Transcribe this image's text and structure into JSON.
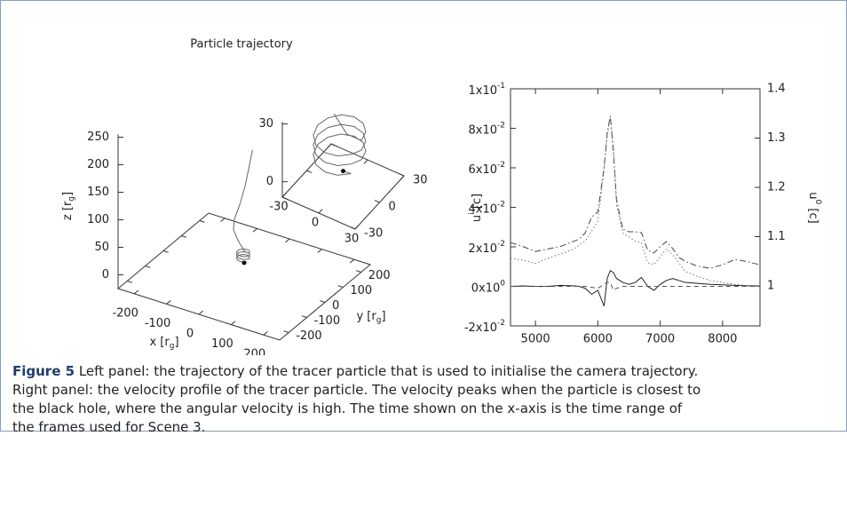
{
  "figure": {
    "label": "Figure 5",
    "caption": "Left panel: the trajectory of the tracer particle that is used to initialise the camera trajectory. Right panel: the velocity profile of the tracer particle. The velocity peaks when the particle is closest to the black hole, where the angular velocity is high. The time shown on the x-axis is the time range of the frames used for Scene 3."
  },
  "chart_data": [
    {
      "type": "trajectory3d",
      "title": "Particle trajectory",
      "color": "#666666",
      "xlabel": {
        "text": "x [r",
        "sub": "g",
        "tail": "]"
      },
      "ylabel": {
        "text": "y [r",
        "sub": "g",
        "tail": "]"
      },
      "zlabel": {
        "text": "z [r",
        "sub": "g",
        "tail": "]"
      },
      "xlim": [
        -250,
        250
      ],
      "ylim": [
        -250,
        250
      ],
      "zlim": [
        -25,
        255
      ],
      "xticks": [
        -200,
        -100,
        0,
        100,
        200
      ],
      "yticks": [
        -200,
        -100,
        0,
        100,
        200
      ],
      "zticks": [
        0,
        50,
        100,
        150,
        200,
        250
      ],
      "x": [
        20,
        12,
        2,
        -12,
        -28,
        -32,
        -20,
        -8,
        5,
        15,
        12.6,
        6,
        -3,
        -12,
        -18.6,
        -21,
        -18.6,
        -12,
        -3,
        6,
        12.6,
        15,
        12.6,
        6,
        -3,
        -12,
        -18.6,
        -21,
        -18.6,
        -12,
        -3,
        6,
        12.6,
        15,
        12.6,
        6,
        -3,
        -12,
        -18.6,
        -21,
        -18.6,
        -12,
        -3,
        6,
        12.6,
        0
      ],
      "y": [
        10,
        6,
        2,
        -2,
        -4,
        -2,
        0,
        0,
        -3,
        0,
        9,
        15.6,
        18,
        15.6,
        9,
        0,
        -9,
        -15.6,
        -18,
        -15.6,
        -9,
        0,
        9,
        15.6,
        18,
        15.6,
        9,
        0,
        -9,
        -15.6,
        -18,
        -15.6,
        -9,
        0,
        9,
        15.6,
        18,
        15.6,
        9,
        0,
        -9,
        -15.6,
        -18,
        -15.6,
        -9,
        0
      ],
      "z": [
        206,
        175,
        140,
        105,
        75,
        55,
        38,
        28,
        22,
        20,
        19.7,
        19.3,
        19,
        18.7,
        18.3,
        18,
        17.7,
        17.3,
        17,
        16.7,
        16.3,
        15,
        14.7,
        14.3,
        14,
        13.7,
        13.3,
        13,
        12.7,
        12.3,
        12,
        11.7,
        11.3,
        10,
        9.7,
        9.3,
        9,
        8.7,
        8.3,
        8,
        7.7,
        7.3,
        7,
        6.7,
        6.3,
        0
      ],
      "inset": {
        "xlim": [
          -30,
          30
        ],
        "ylim": [
          -30,
          30
        ],
        "zlim": [
          -8,
          31
        ],
        "xticks": [
          -30,
          0,
          30
        ],
        "yticks": [
          -30,
          0,
          30
        ],
        "zticks": [
          0,
          30
        ]
      }
    },
    {
      "type": "line",
      "xlabel": {
        "text": "t [r",
        "sub": "g",
        "tail": "/c]"
      },
      "ylabel": {
        "text": "u",
        "sup": "i",
        "tail": " [c]"
      },
      "y2label": {
        "text": "u",
        "sup": "0",
        "tail": " [c]"
      },
      "xlim": [
        4600,
        8600
      ],
      "ylim": [
        -0.02,
        0.1
      ],
      "y2lim": [
        0.919,
        1.4
      ],
      "xticks": [
        5000,
        6000,
        7000,
        8000
      ],
      "yticks": [
        {
          "value": -0.02,
          "label": "-2x10",
          "sup": "-2"
        },
        {
          "value": 0,
          "label": "0x10",
          "sup": "0"
        },
        {
          "value": 0.02,
          "label": "2x10",
          "sup": "-2"
        },
        {
          "value": 0.04,
          "label": "4x10",
          "sup": "-2"
        },
        {
          "value": 0.06,
          "label": "6x10",
          "sup": "-2"
        },
        {
          "value": 0.08,
          "label": "8x10",
          "sup": "-2"
        },
        {
          "value": 0.1,
          "label": "1x10",
          "sup": "-1"
        }
      ],
      "y2ticks": [
        1,
        1.1,
        1.2,
        1.3,
        1.4
      ],
      "legend": "bottom",
      "x": [
        4600,
        4800,
        5000,
        5200,
        5400,
        5600,
        5700,
        5800,
        5900,
        6000,
        6100,
        6150,
        6200,
        6250,
        6300,
        6400,
        6500,
        6600,
        6700,
        6800,
        6900,
        7000,
        7100,
        7200,
        7300,
        7400,
        7600,
        7800,
        8000,
        8200,
        8400,
        8600
      ],
      "series": [
        {
          "name": "u",
          "sup": "0",
          "color": "#444444",
          "dash": "dashdot",
          "axis": "y2",
          "values": [
            1.088,
            1.08,
            1.07,
            1.075,
            1.08,
            1.09,
            1.095,
            1.108,
            1.14,
            1.15,
            1.24,
            1.31,
            1.345,
            1.27,
            1.175,
            1.115,
            1.11,
            1.11,
            1.108,
            1.072,
            1.067,
            1.08,
            1.09,
            1.076,
            1.058,
            1.05,
            1.04,
            1.036,
            1.043,
            1.054,
            1.049,
            1.043
          ]
        },
        {
          "name": "u",
          "sup": "1",
          "color": "#222222",
          "dash": "solid",
          "values": [
            0,
            0.0002,
            0,
            0,
            0.0005,
            0.0003,
            0,
            -0.001,
            -0.004,
            -0.002,
            -0.01,
            0.004,
            0.008,
            0.007,
            0.004,
            0.002,
            0.001,
            0.002,
            0.0045,
            0,
            -0.002,
            0.001,
            0.003,
            0.004,
            0.003,
            0.002,
            0.0015,
            0.001,
            0.0008,
            0.0005,
            0.0003,
            0.0002
          ]
        },
        {
          "name": "u",
          "sup": "2",
          "color": "#555555",
          "dash": "dashed",
          "values": [
            0,
            0,
            0,
            0,
            0,
            0,
            0,
            0,
            -0.0005,
            -0.001,
            0.001,
            0.002,
            0.002,
            -0.002,
            -0.001,
            0,
            0,
            0,
            0,
            0,
            0,
            0,
            0,
            0,
            0,
            0,
            0,
            0,
            0,
            0,
            0,
            0
          ]
        },
        {
          "name": "u",
          "sup": "3",
          "color": "#777777",
          "dash": "dotted",
          "values": [
            0.0142,
            0.0133,
            0.0116,
            0.0142,
            0.0164,
            0.0187,
            0.0209,
            0.023,
            0.028,
            0.033,
            0.059,
            0.076,
            0.086,
            0.07,
            0.041,
            0.027,
            0.025,
            0.023,
            0.022,
            0.012,
            0.011,
            0.015,
            0.019,
            0.016,
            0.012,
            0.0076,
            0.005,
            0.003,
            0.002,
            0.001,
            0.0004,
            0.0004
          ]
        }
      ]
    }
  ]
}
